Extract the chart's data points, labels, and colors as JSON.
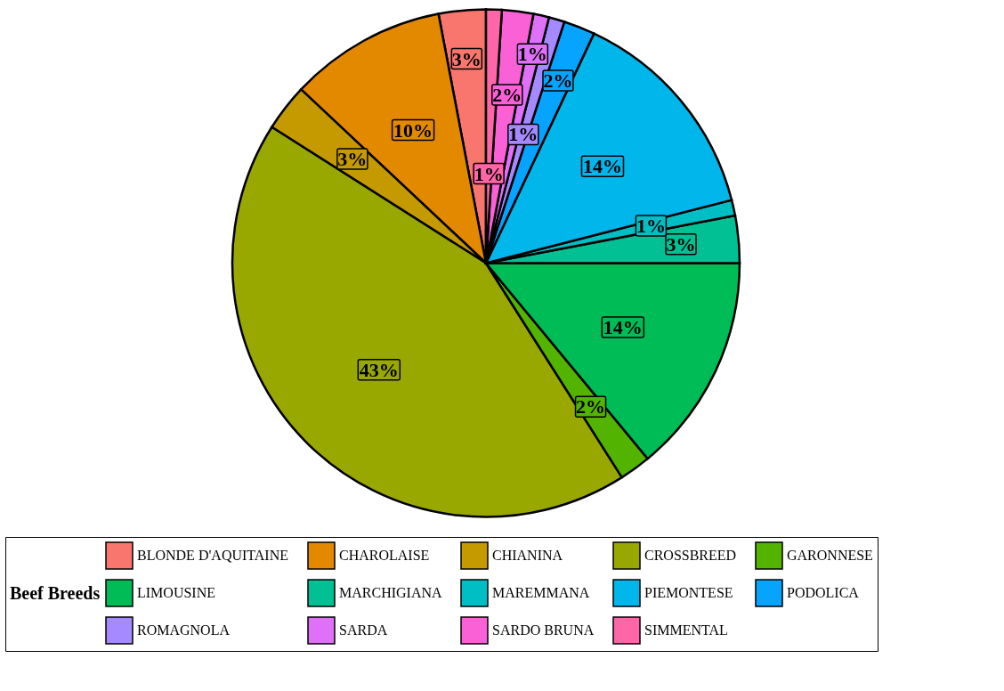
{
  "chart_data": {
    "type": "pie",
    "categories": [
      "BLONDE D'AQUITAINE",
      "CHAROLAISE",
      "CHIANINA",
      "CROSSBREED",
      "GARONNESE",
      "LIMOUSINE",
      "MARCHIGIANA",
      "MAREMMANA",
      "PIEMONTESE",
      "PODOLICA",
      "ROMAGNOLA",
      "SARDA",
      "SARDO BRUNA",
      "SIMMENTAL"
    ],
    "values": [
      3,
      10,
      3,
      43,
      2,
      14,
      3,
      1,
      14,
      2,
      1,
      1,
      2,
      1
    ],
    "value_labels": [
      "3%",
      "10%",
      "3%",
      "43%",
      "2%",
      "14%",
      "3%",
      "1%",
      "14%",
      "2%",
      "1%",
      "1%",
      "2%",
      "1%"
    ],
    "colors": [
      "#f8766d",
      "#e38900",
      "#c49a00",
      "#99a800",
      "#53b400",
      "#00bc56",
      "#00c094",
      "#00bfc4",
      "#00b6eb",
      "#06a4ff",
      "#a58aff",
      "#df70f8",
      "#fb61d7",
      "#ff66a8"
    ],
    "legend_title": "Beef Breeds",
    "legend": "bottom"
  }
}
